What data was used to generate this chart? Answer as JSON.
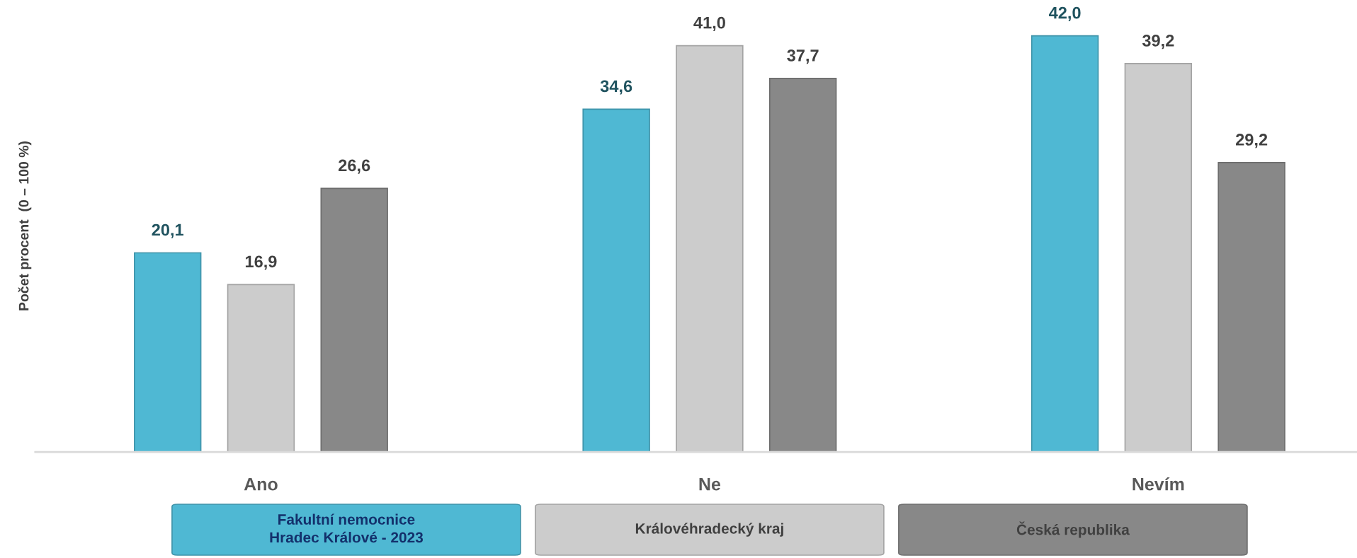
{
  "chart_data": {
    "type": "bar",
    "ylabel": "Počet procent  (0 – 100 %)",
    "categories": [
      "Ano",
      "Ne",
      "Nevím"
    ],
    "series": [
      {
        "name": "Fakultní nemocnice\nHradec Králové - 2023",
        "color": "#4fb8d3",
        "values": [
          20.1,
          34.6,
          42.0
        ],
        "value_labels": [
          "20,1",
          "34,6",
          "42,0"
        ]
      },
      {
        "name": "Královéhradecký kraj",
        "color": "#cccccc",
        "values": [
          16.9,
          41.0,
          39.2
        ],
        "value_labels": [
          "16,9",
          "41,0",
          "39,2"
        ]
      },
      {
        "name": "Česká republika",
        "color": "#888888",
        "values": [
          26.6,
          37.7,
          29.2
        ],
        "value_labels": [
          "26,6",
          "37,7",
          "29,2"
        ]
      }
    ],
    "tick_labels": "x",
    "grid": false,
    "legend": "bottom"
  }
}
